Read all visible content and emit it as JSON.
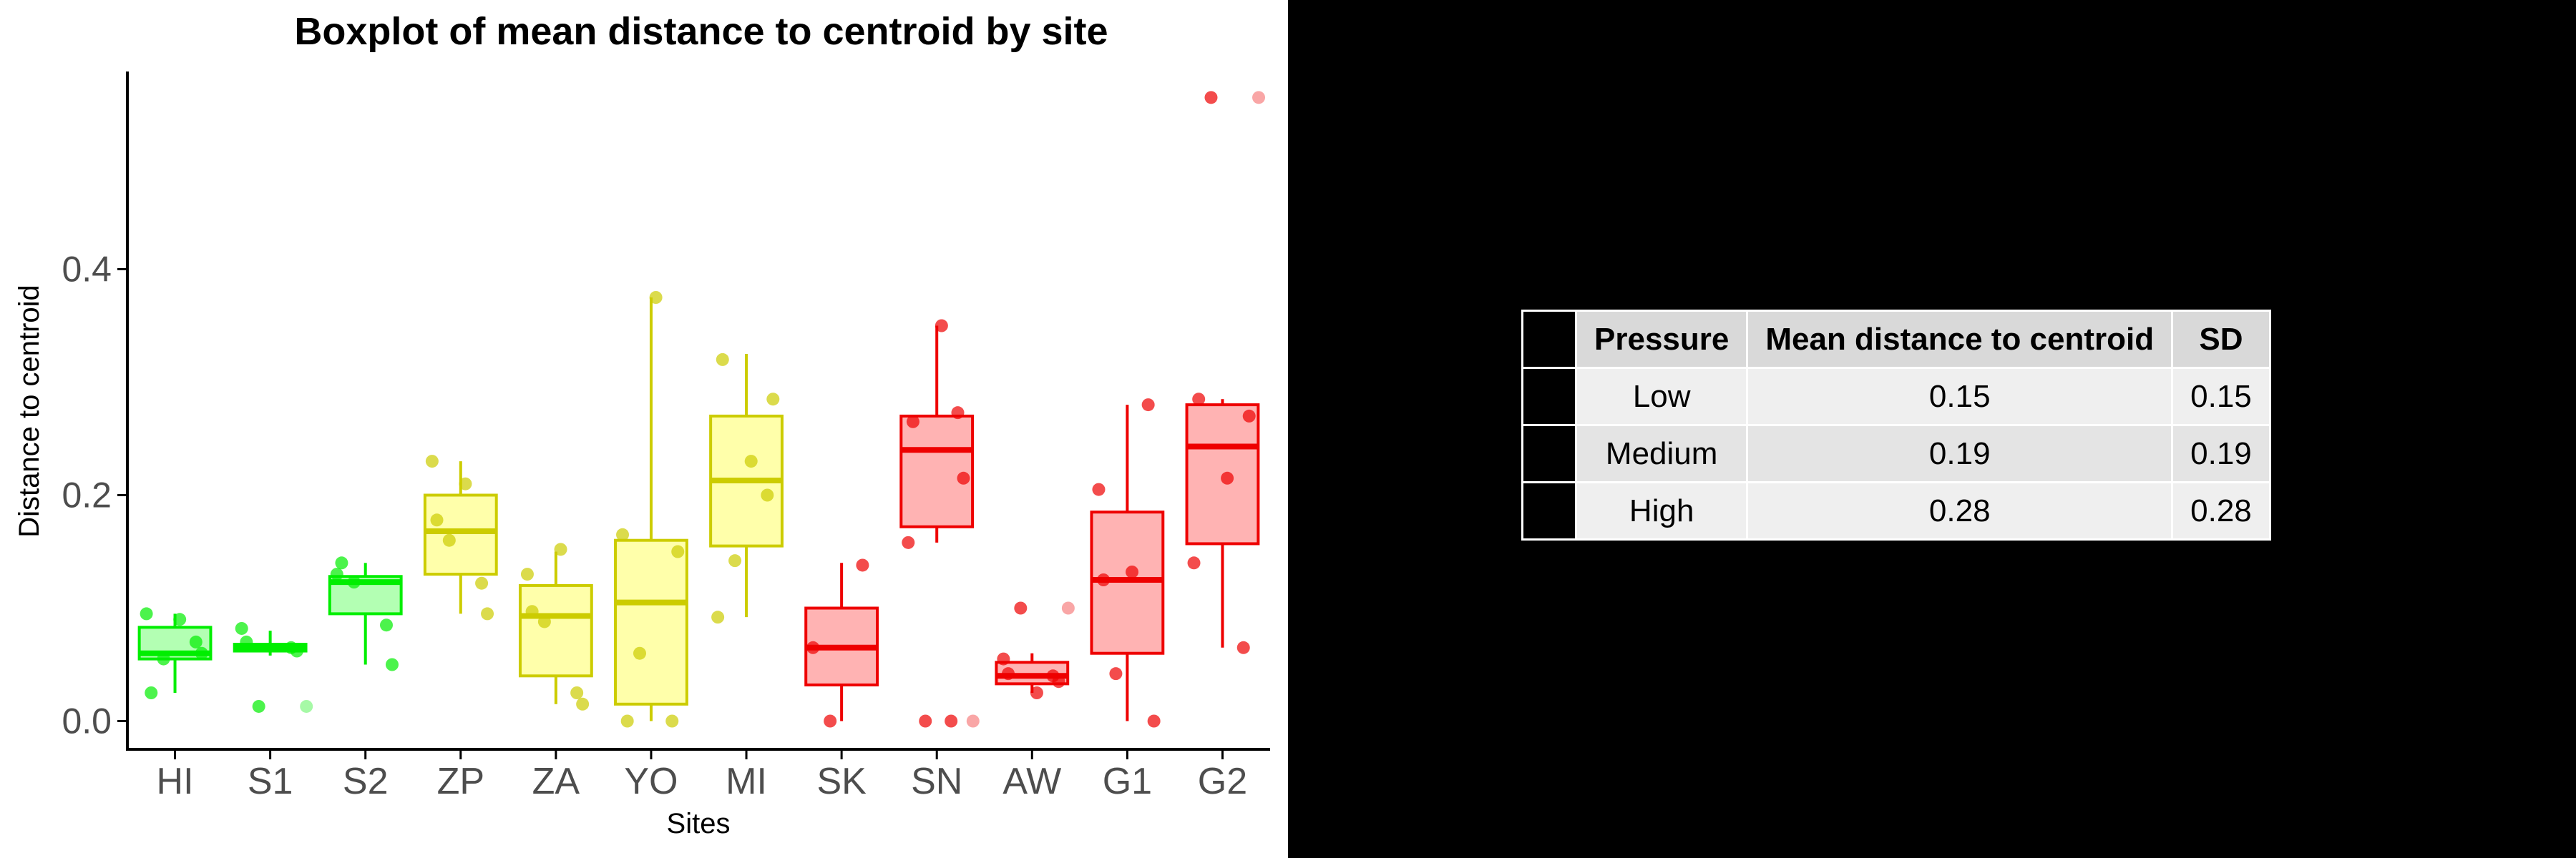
{
  "chart_data": {
    "type": "box",
    "title": "Boxplot of mean distance to centroid by site",
    "xlabel": "Sites",
    "ylabel": "Distance to centroid",
    "ylim": [
      -0.025,
      0.575
    ],
    "yticks": [
      0.0,
      0.2,
      0.4
    ],
    "ytick_labels": [
      "0.0",
      "0.2",
      "0.4"
    ],
    "categories": [
      "HI",
      "S1",
      "S2",
      "ZP",
      "ZA",
      "YO",
      "MI",
      "SK",
      "SN",
      "AW",
      "G1",
      "G2"
    ],
    "pressure_colors": {
      "Low": "#00ee00",
      "Medium": "#cccc00",
      "High": "#ee0000"
    },
    "fill_colors": {
      "Low": "#b3ffb3",
      "Medium": "#ffffaa",
      "High": "#ffb3b3"
    },
    "boxes": [
      {
        "site": "HI",
        "pressure": "Low",
        "whisker_low": 0.025,
        "q1": 0.055,
        "median": 0.06,
        "q3": 0.083,
        "whisker_high": 0.095,
        "points": [
          0.095,
          0.07,
          0.055,
          0.06,
          0.025,
          0.09
        ],
        "outliers": []
      },
      {
        "site": "S1",
        "pressure": "Low",
        "whisker_low": 0.058,
        "q1": 0.062,
        "median": 0.065,
        "q3": 0.068,
        "whisker_high": 0.08,
        "points": [
          0.082,
          0.065,
          0.013,
          0.062,
          0.07
        ],
        "outliers": [
          0.013
        ]
      },
      {
        "site": "S2",
        "pressure": "Low",
        "whisker_low": 0.05,
        "q1": 0.095,
        "median": 0.123,
        "q3": 0.128,
        "whisker_high": 0.14,
        "points": [
          0.13,
          0.085,
          0.123,
          0.05,
          0.14
        ],
        "outliers": []
      },
      {
        "site": "ZP",
        "pressure": "Medium",
        "whisker_low": 0.095,
        "q1": 0.13,
        "median": 0.168,
        "q3": 0.2,
        "whisker_high": 0.23,
        "points": [
          0.23,
          0.122,
          0.16,
          0.095,
          0.178,
          0.21
        ],
        "outliers": []
      },
      {
        "site": "ZA",
        "pressure": "Medium",
        "whisker_low": 0.015,
        "q1": 0.04,
        "median": 0.093,
        "q3": 0.12,
        "whisker_high": 0.15,
        "points": [
          0.13,
          0.025,
          0.088,
          0.015,
          0.097,
          0.152
        ],
        "outliers": []
      },
      {
        "site": "YO",
        "pressure": "Medium",
        "whisker_low": 0.0,
        "q1": 0.015,
        "median": 0.105,
        "q3": 0.16,
        "whisker_high": 0.375,
        "points": [
          0.165,
          0.0,
          0.06,
          0.15,
          0.0,
          0.375
        ],
        "outliers": []
      },
      {
        "site": "MI",
        "pressure": "Medium",
        "whisker_low": 0.092,
        "q1": 0.155,
        "median": 0.213,
        "q3": 0.27,
        "whisker_high": 0.325,
        "points": [
          0.092,
          0.2,
          0.142,
          0.285,
          0.32,
          0.23
        ],
        "outliers": []
      },
      {
        "site": "SK",
        "pressure": "High",
        "whisker_low": 0.0,
        "q1": 0.032,
        "median": 0.065,
        "q3": 0.1,
        "whisker_high": 0.14,
        "points": [
          0.065,
          0.138,
          0.0
        ],
        "outliers": []
      },
      {
        "site": "SN",
        "pressure": "High",
        "whisker_low": 0.158,
        "q1": 0.172,
        "median": 0.24,
        "q3": 0.27,
        "whisker_high": 0.35,
        "points": [
          0.158,
          0.273,
          0.0,
          0.215,
          0.265,
          0.35,
          0.0
        ],
        "outliers": [
          0.0
        ]
      },
      {
        "site": "AW",
        "pressure": "High",
        "whisker_low": 0.025,
        "q1": 0.033,
        "median": 0.04,
        "q3": 0.052,
        "whisker_high": 0.06,
        "points": [
          0.055,
          0.04,
          0.1,
          0.035,
          0.042,
          0.025
        ],
        "outliers": [
          0.1
        ]
      },
      {
        "site": "G1",
        "pressure": "High",
        "whisker_low": 0.0,
        "q1": 0.06,
        "median": 0.125,
        "q3": 0.185,
        "whisker_high": 0.28,
        "points": [
          0.205,
          0.28,
          0.042,
          0.0,
          0.125,
          0.132
        ],
        "outliers": []
      },
      {
        "site": "G2",
        "pressure": "High",
        "whisker_low": 0.065,
        "q1": 0.157,
        "median": 0.243,
        "q3": 0.28,
        "whisker_high": 0.285,
        "points": [
          0.14,
          0.065,
          0.552,
          0.27,
          0.285,
          0.215
        ],
        "outliers": [
          0.552
        ]
      }
    ]
  },
  "table": {
    "headers": [
      "Pressure",
      "Mean distance to centroid",
      "SD"
    ],
    "rows": [
      [
        "Low",
        "0.15",
        "0.15"
      ],
      [
        "Medium",
        "0.19",
        "0.19"
      ],
      [
        "High",
        "0.28",
        "0.28"
      ]
    ]
  }
}
